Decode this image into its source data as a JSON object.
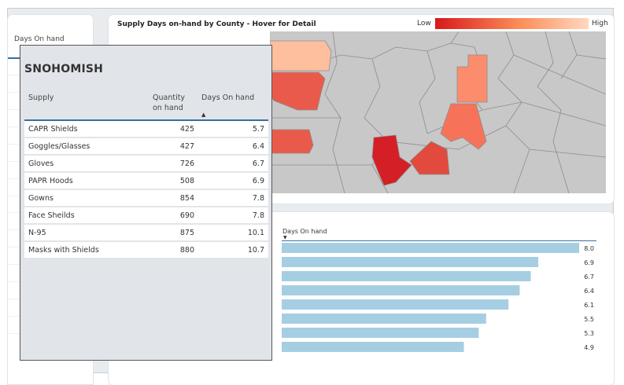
{
  "left_panel": {
    "header": "Days On hand"
  },
  "map": {
    "title": "Supply Days on-hand by County - Hover for Detail",
    "legend": {
      "low": "Low",
      "high": "High",
      "low_color": "#d7191c",
      "high_color": "#fdd9c0"
    },
    "base_color": "#c8c8c8"
  },
  "bars": {
    "header": "Days On hand",
    "sort_icon": "sort-down-icon",
    "bar_color": "#a6cee3",
    "values": [
      "8.0",
      "6.9",
      "6.7",
      "6.4",
      "6.1",
      "5.5",
      "5.3",
      "4.9"
    ]
  },
  "tooltip": {
    "county": "SNOHOMISH",
    "headers": {
      "supply": "Supply",
      "qty": "Quantity on hand",
      "days": "Days On hand"
    },
    "sort_icon": "sort-up-icon",
    "rows": [
      {
        "supply": "CAPR Shields",
        "qty": "425",
        "days": "5.7"
      },
      {
        "supply": "Goggles/Glasses",
        "qty": "427",
        "days": "6.4"
      },
      {
        "supply": "Gloves",
        "qty": "726",
        "days": "6.7"
      },
      {
        "supply": "PAPR Hoods",
        "qty": "508",
        "days": "6.9"
      },
      {
        "supply": "Gowns",
        "qty": "854",
        "days": "7.8"
      },
      {
        "supply": "Face Sheilds",
        "qty": "690",
        "days": "7.8"
      },
      {
        "supply": "N-95",
        "qty": "875",
        "days": "10.1"
      },
      {
        "supply": "Masks with Shields",
        "qty": "880",
        "days": "10.7"
      }
    ]
  }
}
